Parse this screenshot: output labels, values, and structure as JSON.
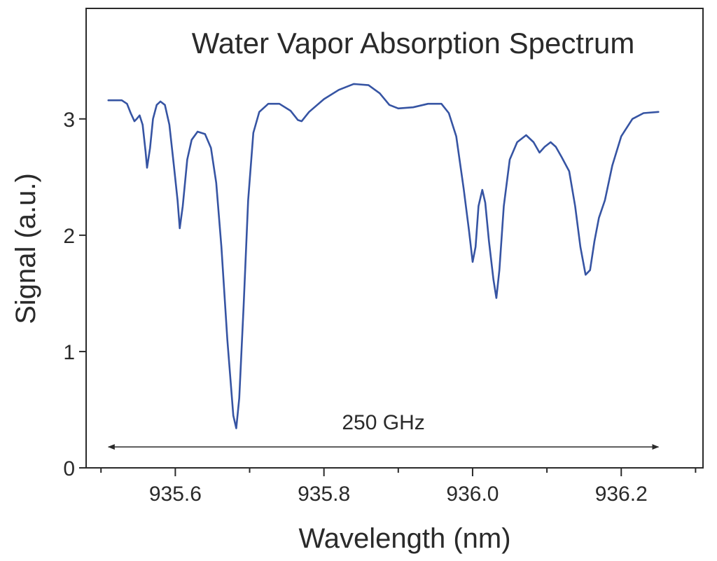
{
  "chart_data": {
    "type": "line",
    "title": "Water Vapor Absorption Spectrum",
    "xlabel": "Wavelength (nm)",
    "ylabel": "Signal (a.u.)",
    "xlim": [
      935.48,
      936.31
    ],
    "ylim": [
      0,
      3.95
    ],
    "x_ticks": [
      935.6,
      935.8,
      936.0,
      936.2
    ],
    "x_tick_labels": [
      "935.6",
      "935.8",
      "936.0",
      "936.2"
    ],
    "x_minor_ticks": [
      935.5,
      935.7,
      935.9,
      936.1,
      936.3
    ],
    "y_ticks": [
      0,
      1,
      2,
      3
    ],
    "y_tick_labels": [
      "0",
      "1",
      "2",
      "3"
    ],
    "grid": false,
    "series": [
      {
        "name": "Signal",
        "color": "#3654a3",
        "points": [
          [
            935.51,
            3.16
          ],
          [
            935.528,
            3.16
          ],
          [
            935.535,
            3.13
          ],
          [
            935.54,
            3.05
          ],
          [
            935.545,
            2.98
          ],
          [
            935.548,
            3.0
          ],
          [
            935.552,
            3.03
          ],
          [
            935.556,
            2.95
          ],
          [
            935.56,
            2.72
          ],
          [
            935.562,
            2.58
          ],
          [
            935.566,
            2.75
          ],
          [
            935.57,
            3.0
          ],
          [
            935.575,
            3.12
          ],
          [
            935.58,
            3.15
          ],
          [
            935.586,
            3.12
          ],
          [
            935.592,
            2.95
          ],
          [
            935.598,
            2.6
          ],
          [
            935.603,
            2.3
          ],
          [
            935.606,
            2.06
          ],
          [
            935.61,
            2.25
          ],
          [
            935.616,
            2.65
          ],
          [
            935.622,
            2.82
          ],
          [
            935.63,
            2.89
          ],
          [
            935.64,
            2.87
          ],
          [
            935.648,
            2.75
          ],
          [
            935.655,
            2.45
          ],
          [
            935.662,
            1.9
          ],
          [
            935.67,
            1.1
          ],
          [
            935.678,
            0.45
          ],
          [
            935.682,
            0.34
          ],
          [
            935.686,
            0.6
          ],
          [
            935.692,
            1.4
          ],
          [
            935.698,
            2.3
          ],
          [
            935.705,
            2.88
          ],
          [
            935.713,
            3.06
          ],
          [
            935.725,
            3.13
          ],
          [
            935.74,
            3.13
          ],
          [
            935.755,
            3.07
          ],
          [
            935.765,
            2.99
          ],
          [
            935.77,
            2.98
          ],
          [
            935.78,
            3.06
          ],
          [
            935.8,
            3.17
          ],
          [
            935.82,
            3.25
          ],
          [
            935.84,
            3.3
          ],
          [
            935.86,
            3.29
          ],
          [
            935.875,
            3.22
          ],
          [
            935.888,
            3.12
          ],
          [
            935.9,
            3.09
          ],
          [
            935.92,
            3.1
          ],
          [
            935.94,
            3.13
          ],
          [
            935.958,
            3.13
          ],
          [
            935.968,
            3.05
          ],
          [
            935.978,
            2.85
          ],
          [
            935.988,
            2.4
          ],
          [
            935.995,
            2.05
          ],
          [
            936.0,
            1.77
          ],
          [
            936.004,
            1.9
          ],
          [
            936.008,
            2.25
          ],
          [
            936.013,
            2.39
          ],
          [
            936.017,
            2.28
          ],
          [
            936.022,
            1.95
          ],
          [
            936.028,
            1.62
          ],
          [
            936.032,
            1.46
          ],
          [
            936.036,
            1.7
          ],
          [
            936.042,
            2.25
          ],
          [
            936.05,
            2.65
          ],
          [
            936.06,
            2.8
          ],
          [
            936.072,
            2.86
          ],
          [
            936.082,
            2.8
          ],
          [
            936.09,
            2.71
          ],
          [
            936.097,
            2.76
          ],
          [
            936.105,
            2.8
          ],
          [
            936.112,
            2.76
          ],
          [
            936.12,
            2.67
          ],
          [
            936.13,
            2.55
          ],
          [
            936.138,
            2.25
          ],
          [
            936.145,
            1.9
          ],
          [
            936.152,
            1.66
          ],
          [
            936.158,
            1.7
          ],
          [
            936.164,
            1.95
          ],
          [
            936.17,
            2.15
          ],
          [
            936.178,
            2.3
          ],
          [
            936.188,
            2.6
          ],
          [
            936.2,
            2.85
          ],
          [
            936.215,
            3.0
          ],
          [
            936.23,
            3.05
          ],
          [
            936.25,
            3.06
          ]
        ]
      }
    ],
    "annotation": {
      "text": "250 GHz",
      "arrow_from_x": 935.51,
      "arrow_to_x": 936.25,
      "arrow_y": 0.18,
      "text_y": 0.33,
      "text_x": 935.88
    }
  }
}
